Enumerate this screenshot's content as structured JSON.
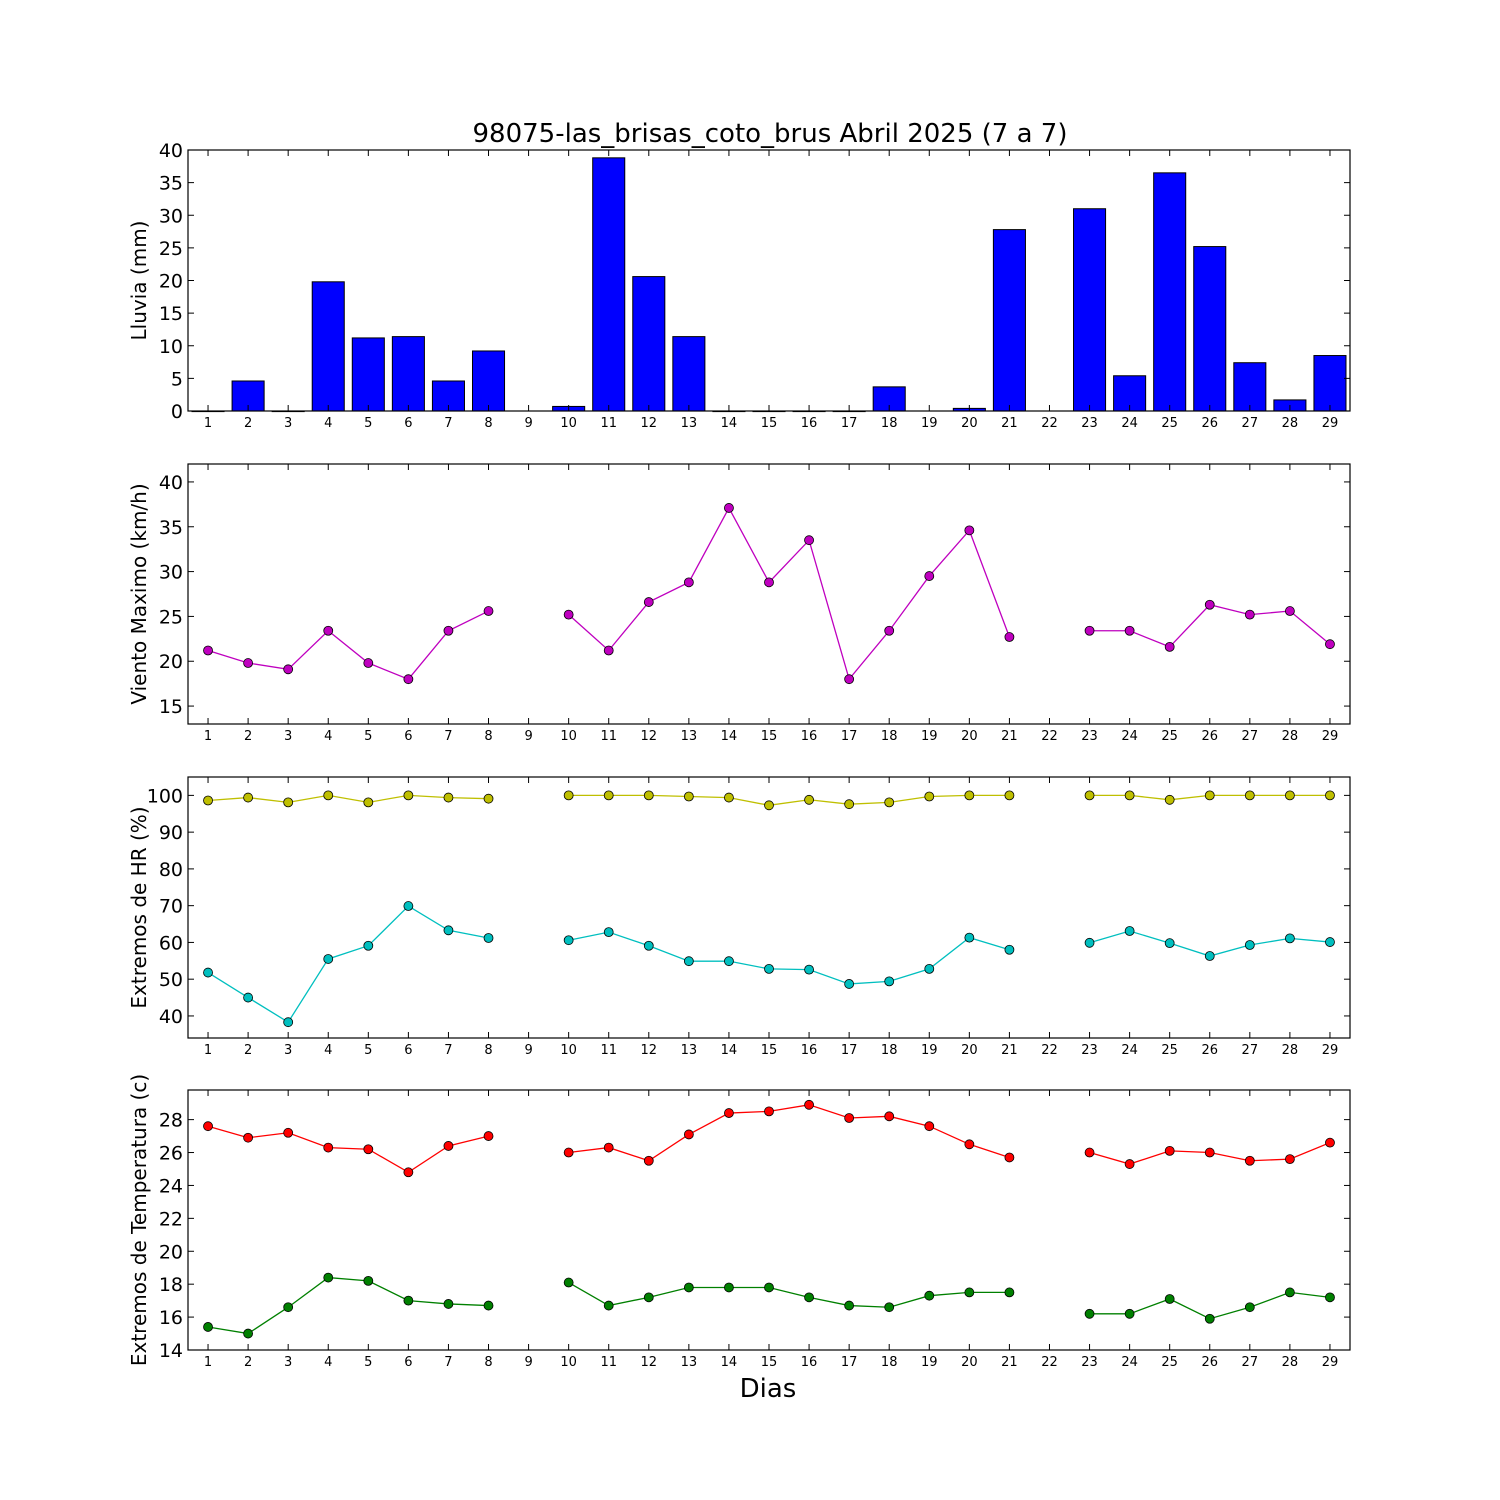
{
  "chart_data": [
    {
      "type": "bar",
      "id": "lluvia",
      "title": "98075-las_brisas_coto_brus Abril 2025  (7 a 7)",
      "ylabel": "Lluvia (mm)",
      "xlabel": "",
      "ylim": [
        0,
        40
      ],
      "yticks": [
        0,
        5,
        10,
        15,
        20,
        25,
        30,
        35,
        40
      ],
      "x": [
        1,
        2,
        3,
        4,
        5,
        6,
        7,
        8,
        9,
        10,
        11,
        12,
        13,
        14,
        15,
        16,
        17,
        18,
        19,
        20,
        21,
        22,
        23,
        24,
        25,
        26,
        27,
        28,
        29
      ],
      "values": [
        0,
        4.6,
        0,
        19.8,
        11.2,
        11.4,
        4.6,
        9.2,
        null,
        0.7,
        38.8,
        20.6,
        11.4,
        0,
        0,
        0,
        0,
        3.7,
        null,
        0.4,
        27.8,
        null,
        31,
        5.4,
        36.5,
        25.2,
        7.4,
        1.7,
        8.5
      ],
      "color": "#0000ff"
    },
    {
      "type": "line",
      "id": "viento",
      "title": "",
      "ylabel": "Viento Maximo (km/h)",
      "xlabel": "",
      "ylim": [
        13,
        42
      ],
      "yticks": [
        15,
        20,
        25,
        30,
        35,
        40
      ],
      "x": [
        1,
        2,
        3,
        4,
        5,
        6,
        7,
        8,
        9,
        10,
        11,
        12,
        13,
        14,
        15,
        16,
        17,
        18,
        19,
        20,
        21,
        22,
        23,
        24,
        25,
        26,
        27,
        28,
        29
      ],
      "series": [
        {
          "color": "#bf00bf",
          "values": [
            21.2,
            19.8,
            19.1,
            23.4,
            19.8,
            18.0,
            23.4,
            25.6,
            null,
            25.2,
            21.2,
            26.6,
            28.8,
            37.1,
            28.8,
            33.5,
            18.0,
            23.4,
            29.5,
            34.6,
            22.7,
            null,
            23.4,
            23.4,
            21.6,
            26.3,
            25.2,
            25.6,
            21.9
          ]
        }
      ]
    },
    {
      "type": "line",
      "id": "hr",
      "title": "",
      "ylabel": "Extremos de HR (%)",
      "xlabel": "",
      "ylim": [
        34,
        105
      ],
      "yticks": [
        40,
        50,
        60,
        70,
        80,
        90,
        100
      ],
      "x": [
        1,
        2,
        3,
        4,
        5,
        6,
        7,
        8,
        9,
        10,
        11,
        12,
        13,
        14,
        15,
        16,
        17,
        18,
        19,
        20,
        21,
        22,
        23,
        24,
        25,
        26,
        27,
        28,
        29
      ],
      "series": [
        {
          "color": "#bfbf00",
          "values": [
            98.6,
            99.4,
            98.1,
            100,
            98.1,
            100,
            99.4,
            99.1,
            null,
            100,
            100,
            100,
            99.7,
            99.4,
            97.3,
            98.8,
            97.6,
            98.1,
            99.7,
            100,
            100,
            null,
            100,
            100,
            98.8,
            100,
            100,
            100,
            100
          ]
        },
        {
          "color": "#00bfbf",
          "values": [
            51.8,
            45.0,
            38.3,
            55.5,
            59.1,
            69.9,
            63.3,
            61.2,
            null,
            60.6,
            62.8,
            59.1,
            54.9,
            54.9,
            52.8,
            52.6,
            48.7,
            49.4,
            52.8,
            61.3,
            58.0,
            null,
            59.9,
            63.1,
            59.8,
            56.3,
            59.3,
            61.1,
            60.1
          ]
        }
      ]
    },
    {
      "type": "line",
      "id": "temperatura",
      "title": "",
      "ylabel": "Extremos de Temperatura (c)",
      "xlabel": "Dias",
      "ylim": [
        14,
        29.8
      ],
      "yticks": [
        14,
        16,
        18,
        20,
        22,
        24,
        26,
        28
      ],
      "x": [
        1,
        2,
        3,
        4,
        5,
        6,
        7,
        8,
        9,
        10,
        11,
        12,
        13,
        14,
        15,
        16,
        17,
        18,
        19,
        20,
        21,
        22,
        23,
        24,
        25,
        26,
        27,
        28,
        29
      ],
      "series": [
        {
          "color": "#ff0000",
          "values": [
            27.6,
            26.9,
            27.2,
            26.3,
            26.2,
            24.8,
            26.4,
            27.0,
            null,
            26.0,
            26.3,
            25.5,
            27.1,
            28.4,
            28.5,
            28.9,
            28.1,
            28.2,
            27.6,
            26.5,
            25.7,
            null,
            26.0,
            25.3,
            26.1,
            26.0,
            25.5,
            25.6,
            26.6
          ]
        },
        {
          "color": "#008000",
          "values": [
            15.4,
            15.0,
            16.6,
            18.4,
            18.2,
            17.0,
            16.8,
            16.7,
            null,
            18.1,
            16.7,
            17.2,
            17.8,
            17.8,
            17.8,
            17.2,
            16.7,
            16.6,
            17.3,
            17.5,
            17.5,
            null,
            16.2,
            16.2,
            17.1,
            15.9,
            16.6,
            17.5,
            17.2
          ]
        }
      ]
    }
  ]
}
